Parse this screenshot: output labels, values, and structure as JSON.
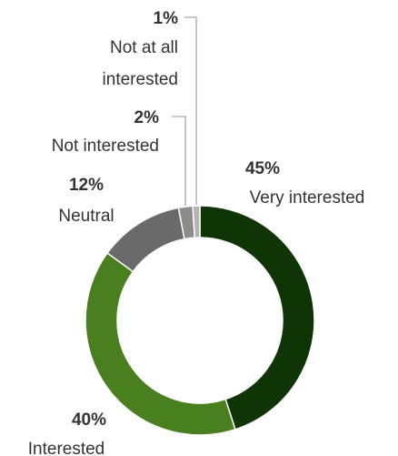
{
  "chart_data": {
    "type": "pie",
    "variant": "donut",
    "title": "",
    "slices": [
      {
        "label": "Very interested",
        "value": 45,
        "value_label": "45%",
        "color": "#0f3405"
      },
      {
        "label": "Interested",
        "value": 40,
        "value_label": "40%",
        "color": "#4a7f1f"
      },
      {
        "label": "Neutral",
        "value": 12,
        "value_label": "12%",
        "color": "#6a6a6a"
      },
      {
        "label": "Not interested",
        "value": 2,
        "value_label": "2%",
        "color": "#8c8c8c"
      },
      {
        "label": "Not at all\ninterested",
        "value": 1,
        "value_label": "1%",
        "color": "#b3b3b3"
      }
    ],
    "start": "12 o'clock",
    "direction": "clockwise",
    "legend": "none",
    "leader_color": "#a6a6a6"
  }
}
